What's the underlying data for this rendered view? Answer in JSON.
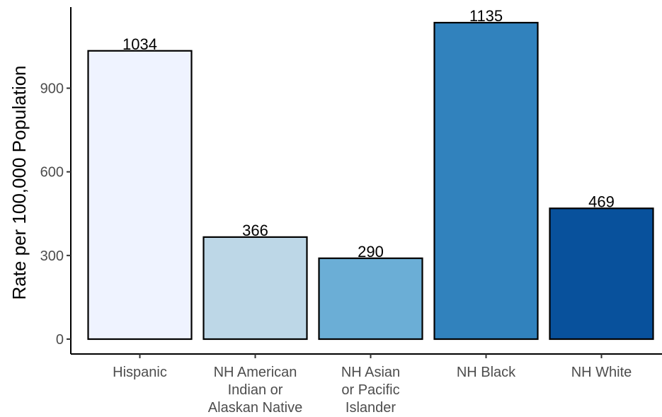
{
  "chart_data": {
    "type": "bar",
    "title": "",
    "xlabel": "",
    "ylabel": "Rate per 100,000 Population",
    "categories": [
      [
        "Hispanic"
      ],
      [
        "NH American",
        "Indian or",
        "Alaskan Native"
      ],
      [
        "NH Asian",
        "or Pacific",
        "Islander"
      ],
      [
        "NH Black"
      ],
      [
        "NH White"
      ]
    ],
    "values": [
      1034,
      366,
      290,
      1135,
      469
    ],
    "data_labels": [
      "1034",
      "366",
      "290",
      "1135",
      "469"
    ],
    "colors": [
      "#eff3ff",
      "#bdd7e7",
      "#6baed6",
      "#3182bd",
      "#08519c"
    ],
    "ylim": [
      0,
      1135
    ],
    "yticks": [
      0,
      300,
      600,
      900
    ],
    "grid": false,
    "legend": "none"
  }
}
